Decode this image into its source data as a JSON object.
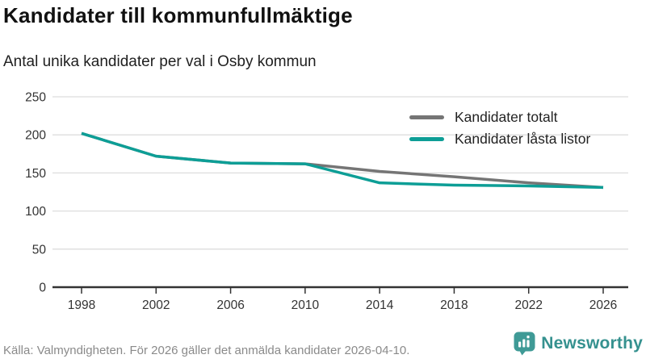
{
  "header": {
    "title": "Kandidater till kommunfullmäktige",
    "subtitle": "Antal unika kandidater per val i Osby kommun"
  },
  "chart_data": {
    "type": "line",
    "title": "Kandidater till kommunfullmäktige",
    "subtitle": "Antal unika kandidater per val i Osby kommun",
    "x": [
      1998,
      2002,
      2006,
      2010,
      2014,
      2018,
      2022,
      2026
    ],
    "series": [
      {
        "name": "Kandidater totalt",
        "color": "#757575",
        "values": [
          202,
          172,
          163,
          162,
          152,
          145,
          137,
          131
        ]
      },
      {
        "name": "Kandidater låsta listor",
        "color": "#0d9e96",
        "values": [
          202,
          172,
          163,
          162,
          137,
          134,
          133,
          131
        ]
      }
    ],
    "ylim": [
      0,
      250
    ],
    "yticks": [
      0,
      50,
      100,
      150,
      200,
      250
    ],
    "grid": true,
    "legend_position": "inside-top-right",
    "xlabel": "",
    "ylabel": ""
  },
  "footer": {
    "source": "Källa: Valmyndigheten. För 2026 gäller det anmälda kandidater 2026-04-10.",
    "brand": "Newsworthy"
  },
  "colors": {
    "accent_teal": "#0d9e96",
    "series_gray": "#757575",
    "axis": "#333333",
    "gridline": "#dddddd",
    "tick_label": "#333333",
    "source_text": "#8a8a8a",
    "brand_teal": "#35918f"
  }
}
